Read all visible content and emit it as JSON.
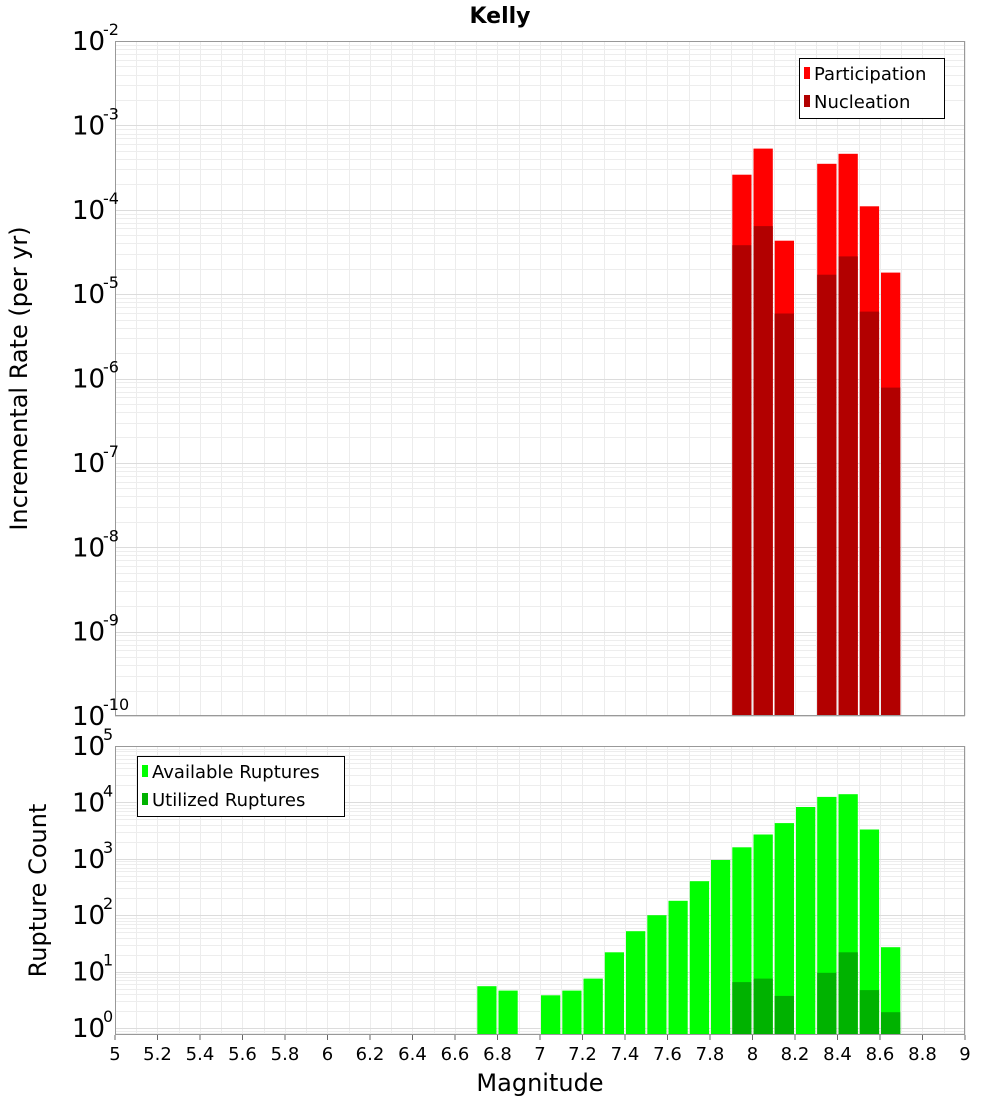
{
  "chart_data": [
    {
      "type": "bar",
      "title": "Kelly",
      "xlabel": "",
      "ylabel": "Incremental Rate (per yr)",
      "yscale": "log",
      "xlim": [
        5,
        9
      ],
      "ylim": [
        1e-10,
        0.01
      ],
      "y_ticks": [
        {
          "base": "10",
          "exp": "-10",
          "value": 1e-10
        },
        {
          "base": "10",
          "exp": "-9",
          "value": 1e-09
        },
        {
          "base": "10",
          "exp": "-8",
          "value": 1e-08
        },
        {
          "base": "10",
          "exp": "-7",
          "value": 1e-07
        },
        {
          "base": "10",
          "exp": "-6",
          "value": 1e-06
        },
        {
          "base": "10",
          "exp": "-5",
          "value": 1e-05
        },
        {
          "base": "10",
          "exp": "-4",
          "value": 0.0001
        },
        {
          "base": "10",
          "exp": "-3",
          "value": 0.001
        },
        {
          "base": "10",
          "exp": "-2",
          "value": 0.01
        }
      ],
      "bin_width": 0.1,
      "legend": {
        "position": "top-right",
        "entries": [
          {
            "name": "Participation",
            "color": "#ff0000"
          },
          {
            "name": "Nucleation",
            "color": "#b20000"
          }
        ]
      },
      "series": [
        {
          "name": "Participation",
          "color": "#ff0000",
          "x": [
            7.95,
            8.05,
            8.15,
            8.35,
            8.45,
            8.55,
            8.65
          ],
          "values": [
            0.00026,
            0.00053,
            4.3e-05,
            0.00035,
            0.00046,
            0.00011,
            1.8e-05
          ]
        },
        {
          "name": "Nucleation",
          "color": "#b20000",
          "x": [
            7.95,
            8.05,
            8.15,
            8.35,
            8.45,
            8.55,
            8.65
          ],
          "values": [
            3.8e-05,
            6.4e-05,
            5.9e-06,
            1.7e-05,
            2.8e-05,
            6.2e-06,
            7.8e-07
          ]
        }
      ]
    },
    {
      "type": "bar",
      "title": "",
      "xlabel": "Magnitude",
      "ylabel": "Rupture Count",
      "yscale": "log",
      "xlim": [
        5,
        9
      ],
      "ylim": [
        0.75,
        100000.0
      ],
      "x_ticks": [
        "5",
        "5.2",
        "5.4",
        "5.6",
        "5.8",
        "6",
        "6.2",
        "6.4",
        "6.6",
        "6.8",
        "7",
        "7.2",
        "7.4",
        "7.6",
        "7.8",
        "8",
        "8.2",
        "8.4",
        "8.6",
        "8.8",
        "9"
      ],
      "y_ticks": [
        {
          "base": "10",
          "exp": "0",
          "value": 1
        },
        {
          "base": "10",
          "exp": "1",
          "value": 10
        },
        {
          "base": "10",
          "exp": "2",
          "value": 100
        },
        {
          "base": "10",
          "exp": "3",
          "value": 1000
        },
        {
          "base": "10",
          "exp": "4",
          "value": 10000
        },
        {
          "base": "10",
          "exp": "5",
          "value": 100000
        }
      ],
      "bin_width": 0.1,
      "legend": {
        "position": "top-left",
        "entries": [
          {
            "name": "Available Ruptures",
            "color": "#00ff00"
          },
          {
            "name": "Utilized Ruptures",
            "color": "#00b200"
          }
        ]
      },
      "series": [
        {
          "name": "Available Ruptures",
          "color": "#00ff00",
          "x": [
            6.75,
            6.85,
            7.05,
            7.15,
            7.25,
            7.35,
            7.45,
            7.55,
            7.65,
            7.75,
            7.85,
            7.95,
            8.05,
            8.15,
            8.25,
            8.35,
            8.45,
            8.55,
            8.65
          ],
          "values": [
            5.5,
            4.6,
            3.8,
            4.6,
            7.5,
            22,
            52,
            100,
            180,
            400,
            950,
            1600,
            2700,
            4300,
            8300,
            12500,
            14000,
            3300,
            27
          ]
        },
        {
          "name": "Utilized Ruptures",
          "color": "#00b200",
          "x": [
            7.95,
            8.05,
            8.15,
            8.35,
            8.45,
            8.55,
            8.65
          ],
          "values": [
            6.5,
            7.5,
            3.7,
            9.5,
            22,
            4.7,
            1.9
          ]
        }
      ]
    }
  ]
}
